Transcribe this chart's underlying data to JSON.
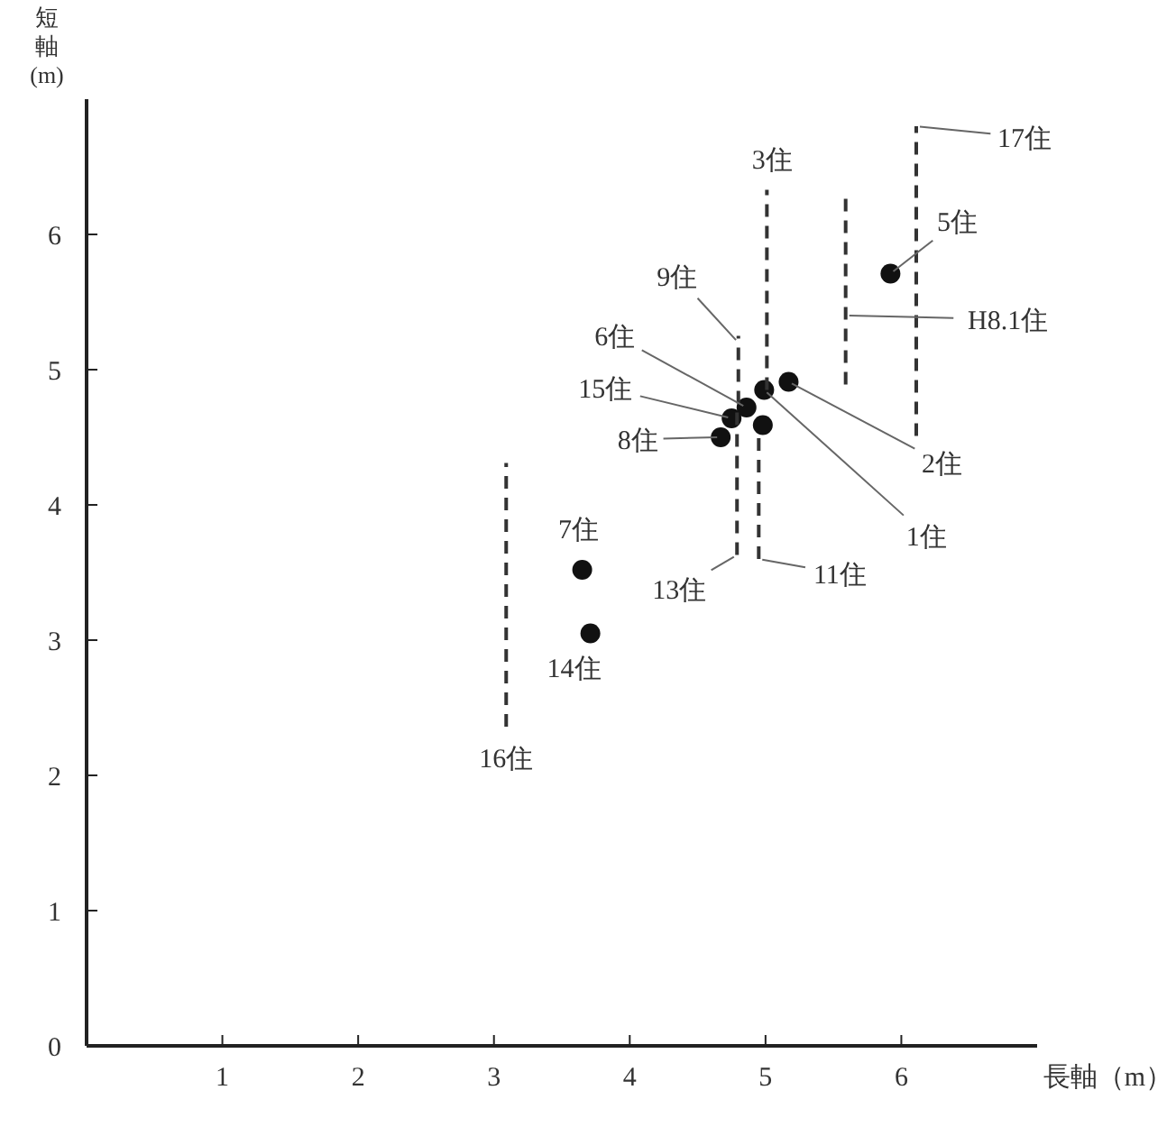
{
  "chart_data": {
    "type": "scatter",
    "xlabel": "長軸（m）",
    "ylabel": "短軸(m)",
    "xlim": [
      0,
      7
    ],
    "ylim": [
      0,
      7
    ],
    "xticks": [
      1,
      2,
      3,
      4,
      5,
      6
    ],
    "yticks": [
      0,
      1,
      2,
      3,
      4,
      5,
      6
    ],
    "grid": false,
    "series": [
      {
        "marker": "circle",
        "color": "#111111",
        "x": [
          3.65,
          3.71,
          4.67,
          4.75,
          4.86,
          4.99,
          4.98,
          5.17,
          5.92
        ],
        "values": [
          3.52,
          3.05,
          4.5,
          4.64,
          4.72,
          4.85,
          4.59,
          4.91,
          5.71
        ]
      },
      {
        "type": "line",
        "marker": "none",
        "line_style": "dashed",
        "color": "#333333",
        "x": [
          3.09,
          3.09
        ],
        "values": [
          2.36,
          4.31
        ]
      },
      {
        "type": "line",
        "marker": "none",
        "line_style": "dashed",
        "color": "#333333",
        "x": [
          4.79,
          4.79
        ],
        "values": [
          3.63,
          4.7
        ]
      },
      {
        "type": "line",
        "marker": "none",
        "line_style": "dashed",
        "color": "#333333",
        "x": [
          4.95,
          4.95
        ],
        "values": [
          3.6,
          4.55
        ]
      },
      {
        "type": "line",
        "marker": "none",
        "line_style": "dashed",
        "color": "#333333",
        "x": [
          4.8,
          4.8
        ],
        "values": [
          4.75,
          5.25
        ]
      },
      {
        "type": "line",
        "marker": "none",
        "line_style": "dashed",
        "color": "#333333",
        "x": [
          5.01,
          5.01
        ],
        "values": [
          4.85,
          6.33
        ]
      },
      {
        "type": "line",
        "marker": "none",
        "line_style": "dashed",
        "color": "#333333",
        "x": [
          5.59,
          5.59
        ],
        "values": [
          4.89,
          6.31
        ]
      },
      {
        "type": "line",
        "marker": "none",
        "line_style": "dashed",
        "color": "#333333",
        "x": [
          6.11,
          6.11
        ],
        "values": [
          4.51,
          6.8
        ]
      }
    ],
    "annotations": [
      {
        "text": "7住",
        "x": 3.65,
        "y": 3.52
      },
      {
        "text": "14住",
        "x": 3.71,
        "y": 3.05
      },
      {
        "text": "16住",
        "x": 3.09,
        "y": 2.36
      },
      {
        "text": "8住",
        "x": 4.67,
        "y": 4.5
      },
      {
        "text": "15住",
        "x": 4.75,
        "y": 4.64
      },
      {
        "text": "6住",
        "x": 4.86,
        "y": 4.72
      },
      {
        "text": "9住",
        "x": 4.8,
        "y": 5.2
      },
      {
        "text": "3住",
        "x": 5.01,
        "y": 6.33
      },
      {
        "text": "17住",
        "x": 6.11,
        "y": 6.8
      },
      {
        "text": "5住",
        "x": 5.92,
        "y": 5.71
      },
      {
        "text": "H8.1住",
        "x": 5.59,
        "y": 5.4
      },
      {
        "text": "2住",
        "x": 5.17,
        "y": 4.91
      },
      {
        "text": "1住",
        "x": 4.99,
        "y": 4.85
      },
      {
        "text": "11住",
        "x": 4.95,
        "y": 3.6
      },
      {
        "text": "13住",
        "x": 4.79,
        "y": 3.63
      }
    ]
  }
}
